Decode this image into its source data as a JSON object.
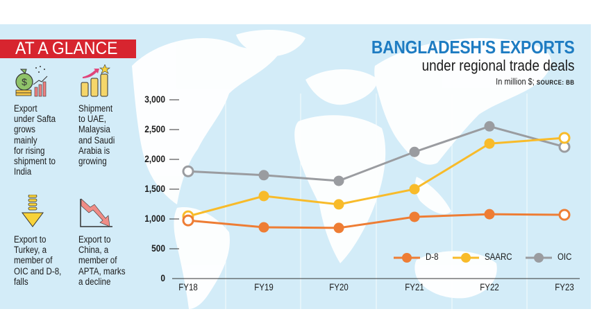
{
  "sidebar": {
    "banner_label": "AT A GLANCE",
    "notes": [
      {
        "icon": "money-bag-growth-icon",
        "text": [
          "Export",
          "under Safta",
          "grows",
          "mainly",
          "for rising",
          "shipment to",
          "India"
        ]
      },
      {
        "icon": "rising-bars-icon",
        "text": [
          "Shipment",
          "to UAE,",
          "Malaysia",
          "and Saudi",
          "Arabia is",
          "growing"
        ]
      },
      {
        "icon": "down-arrow-icon",
        "text": [
          "Export to",
          "Turkey, a",
          "member of",
          "OIC and D-8,",
          "falls"
        ]
      },
      {
        "icon": "declining-chart-icon",
        "text": [
          "Export to",
          "China, a",
          "member of",
          "APTA, marks",
          "a decline"
        ]
      }
    ]
  },
  "header": {
    "title": "BANGLADESH'S EXPORTS",
    "subtitle": "under regional trade deals",
    "unit_note": "In million $;",
    "source_label": "SOURCE: BB"
  },
  "colors": {
    "panel_bg": "#d3ecf8",
    "banner_red": "#d7252f",
    "title_blue": "#1e7cc2",
    "d8": "#ee7d34",
    "saarc": "#f8bb2a",
    "oic": "#9a9ca0"
  },
  "chart_data": {
    "type": "line",
    "title": "BANGLADESH'S EXPORTS under regional trade deals",
    "subtitle": "In million $; SOURCE: BB",
    "xlabel": "",
    "ylabel": "In million $",
    "categories": [
      "FY18",
      "FY19",
      "FY20",
      "FY21",
      "FY22",
      "FY23"
    ],
    "yticks": [
      0,
      500,
      1000,
      1500,
      2000,
      2500,
      3000
    ],
    "ytick_labels": [
      "0",
      "500",
      "1,000",
      "1,500",
      "2,000",
      "2,500",
      "3,000"
    ],
    "ylim": [
      0,
      3000
    ],
    "grid": "vertical lines between categories",
    "legend_position": "bottom-right inside plot",
    "series": [
      {
        "name": "D-8",
        "color": "#ee7d34",
        "values": [
          975,
          860,
          850,
          1035,
          1080,
          1070
        ]
      },
      {
        "name": "SAARC",
        "color": "#f8bb2a",
        "values": [
          1045,
          1385,
          1245,
          1500,
          2265,
          2360
        ]
      },
      {
        "name": "OIC",
        "color": "#9a9ca0",
        "values": [
          1800,
          1735,
          1640,
          2125,
          2555,
          2210
        ]
      }
    ]
  }
}
